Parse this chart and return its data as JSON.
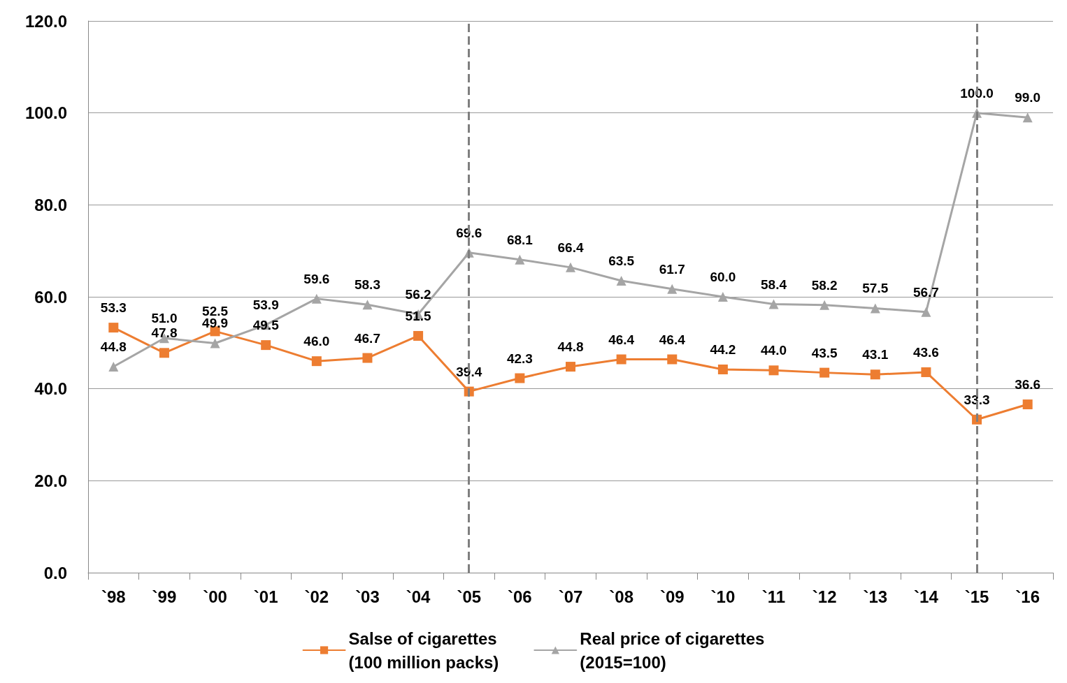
{
  "chart_data": {
    "type": "line",
    "categories": [
      "`98",
      "`99",
      "`00",
      "`01",
      "`02",
      "`03",
      "`04",
      "`05",
      "`06",
      "`07",
      "`08",
      "`09",
      "`10",
      "`11",
      "`12",
      "`13",
      "`14",
      "`15",
      "`16"
    ],
    "series": [
      {
        "name": "Salse of cigarettes\n(100 million packs)",
        "color": "#ed7d31",
        "marker": "square",
        "values": [
          53.3,
          47.8,
          52.5,
          49.5,
          46.0,
          46.7,
          51.5,
          39.4,
          42.3,
          44.8,
          46.4,
          46.4,
          44.2,
          44.0,
          43.5,
          43.1,
          43.6,
          33.3,
          36.6
        ],
        "value_labels": [
          "53.3",
          "47.8",
          "52.5",
          "49.5",
          "46.0",
          "46.7",
          "51.5",
          "39.4",
          "42.3",
          "44.8",
          "46.4",
          "46.4",
          "44.2",
          "44.0",
          "43.5",
          "43.1",
          "43.6",
          "33.3",
          "36.6"
        ]
      },
      {
        "name": "Real price of cigarettes\n(2015=100)",
        "color": "#a5a5a5",
        "marker": "triangle",
        "values": [
          44.8,
          51.0,
          49.9,
          53.9,
          59.6,
          58.3,
          56.2,
          69.6,
          68.1,
          66.4,
          63.5,
          61.7,
          60.0,
          58.4,
          58.2,
          57.5,
          56.7,
          100.0,
          99.0
        ],
        "value_labels": [
          "44.8",
          "51.0",
          "49.9",
          "53.9",
          "59.6",
          "58.3",
          "56.2",
          "69.6",
          "68.1",
          "66.4",
          "63.5",
          "61.7",
          "60.0",
          "58.4",
          "58.2",
          "57.5",
          "56.7",
          "100.0",
          "99.0"
        ]
      }
    ],
    "ylim": [
      0,
      120
    ],
    "yticks": [
      {
        "value": 0,
        "label": "0.0"
      },
      {
        "value": 20,
        "label": "20.0"
      },
      {
        "value": 40,
        "label": "40.0"
      },
      {
        "value": 60,
        "label": "60.0"
      },
      {
        "value": 80,
        "label": "80.0"
      },
      {
        "value": 100,
        "label": "100.0"
      },
      {
        "value": 120,
        "label": "120.0"
      }
    ],
    "grid": "y",
    "legend": "bottom",
    "line_style": "solid",
    "ref_lines": [
      {
        "axis": "x",
        "value": "`05",
        "color": "#7f7f7f",
        "line_style": "dashed"
      },
      {
        "axis": "x",
        "value": "`15",
        "color": "#7f7f7f",
        "line_style": "dashed"
      }
    ]
  }
}
